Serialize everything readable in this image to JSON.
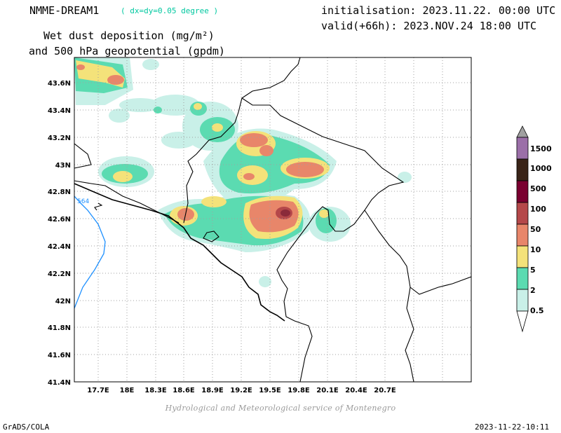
{
  "header": {
    "model_title": "NMME-DREAM1",
    "resolution": "( dx=dy=0.05 degree )",
    "initialisation": "initialisation: 2023.11.22. 00:00 UTC",
    "valid": "valid(+66h): 2023.NOV.24 18:00 UTC",
    "variable_line1": "Wet dust deposition (mg/m²)",
    "variable_line2": "and 500 hPa geopotential (gpdm)"
  },
  "map": {
    "lat_labels": [
      "43.6N",
      "43.4N",
      "43.2N",
      "43N",
      "42.8N",
      "42.6N",
      "42.4N",
      "42.2N",
      "42N",
      "41.8N",
      "41.6N",
      "41.4N"
    ],
    "lon_labels": [
      "17.7E",
      "18E",
      "18.3E",
      "18.6E",
      "18.9E",
      "19.2E",
      "19.5E",
      "19.8E",
      "20.1E",
      "20.4E",
      "20.7E"
    ],
    "contour_label": "564",
    "colors": {
      "land_border": "#000000",
      "geopotential_contour": "#1e90ff",
      "grid": "#a0a0a0"
    }
  },
  "legend": {
    "levels": [
      {
        "label": "1500",
        "color": "#a0a0a0"
      },
      {
        "label": "1000",
        "color": "#9b6fa8"
      },
      {
        "label": "500",
        "color": "#3a2418"
      },
      {
        "label": "100",
        "color": "#7a0030"
      },
      {
        "label": "50",
        "color": "#b5484a"
      },
      {
        "label": "10",
        "color": "#e8866a"
      },
      {
        "label": "5",
        "color": "#f4e27a"
      },
      {
        "label": "2",
        "color": "#5bdbb1"
      },
      {
        "label": "0.5",
        "color": "#c9f0e8"
      }
    ]
  },
  "footer": {
    "credit": "Hydrological and Meteorological service of Montenegro",
    "software": "GrADS/COLA",
    "timestamp": "2023-11-22-10:11"
  }
}
